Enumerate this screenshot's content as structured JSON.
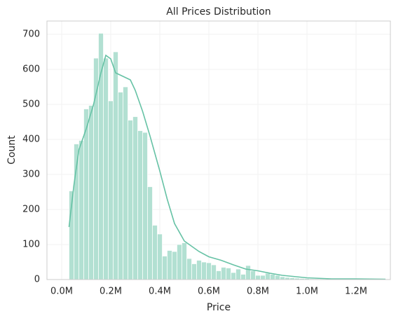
{
  "chart_data": {
    "type": "histogram",
    "title": "All Prices Distribution",
    "x_label": "Price",
    "y_label": "Count",
    "bins": [
      30000,
      50000,
      70000,
      90000,
      110000,
      130000,
      150000,
      170000,
      190000,
      210000,
      230000,
      250000,
      270000,
      290000,
      310000,
      330000,
      350000,
      370000,
      390000,
      410000,
      430000,
      450000,
      470000,
      490000,
      510000,
      530000,
      550000,
      570000,
      590000,
      610000,
      630000,
      650000,
      670000,
      690000,
      710000,
      730000,
      750000,
      770000,
      790000,
      810000,
      830000,
      850000,
      870000,
      890000,
      910000,
      930000,
      950000,
      970000,
      990000,
      1010000,
      1030000,
      1050000,
      1070000,
      1090000,
      1110000,
      1130000,
      1150000,
      1170000,
      1190000,
      1210000,
      1230000,
      1250000,
      1270000,
      1290000,
      1310000,
      1330000
    ],
    "values": [
      253,
      387,
      397,
      487,
      497,
      632,
      703,
      632,
      510,
      650,
      535,
      550,
      455,
      465,
      425,
      420,
      265,
      155,
      130,
      67,
      83,
      80,
      100,
      105,
      60,
      45,
      55,
      50,
      48,
      42,
      25,
      35,
      33,
      20,
      30,
      15,
      40,
      25,
      12,
      12,
      18,
      15,
      12,
      8,
      6,
      5,
      4,
      3,
      3,
      2,
      2,
      2,
      1,
      1,
      2,
      1,
      1,
      1,
      1,
      1,
      0,
      1,
      1,
      1,
      1
    ],
    "color": "#b2e0d2",
    "kde": {
      "color": "#66c2a5",
      "x": [
        30000,
        50000,
        70000,
        100000,
        130000,
        160000,
        180000,
        200000,
        220000,
        250000,
        280000,
        300000,
        330000,
        360000,
        400000,
        430000,
        460000,
        500000,
        530000,
        560000,
        600000,
        650000,
        700000,
        750000,
        800000,
        850000,
        900000,
        1000000,
        1100000,
        1200000,
        1320000
      ],
      "y": [
        150,
        270,
        370,
        430,
        500,
        590,
        640,
        630,
        590,
        580,
        570,
        540,
        480,
        410,
        310,
        230,
        160,
        110,
        95,
        80,
        65,
        55,
        42,
        30,
        25,
        18,
        12,
        5,
        2,
        2,
        1
      ]
    },
    "xlim": [
      -60000,
      1340000
    ],
    "ylim": [
      0,
      738
    ],
    "xticks": [
      {
        "value": 0,
        "label": "0.0M"
      },
      {
        "value": 200000,
        "label": "0.2M"
      },
      {
        "value": 400000,
        "label": "0.4M"
      },
      {
        "value": 600000,
        "label": "0.6M"
      },
      {
        "value": 800000,
        "label": "0.8M"
      },
      {
        "value": 1000000,
        "label": "1.0M"
      },
      {
        "value": 1200000,
        "label": "1.2M"
      }
    ],
    "yticks": [
      0,
      100,
      200,
      300,
      400,
      500,
      600,
      700
    ],
    "grid": true
  }
}
